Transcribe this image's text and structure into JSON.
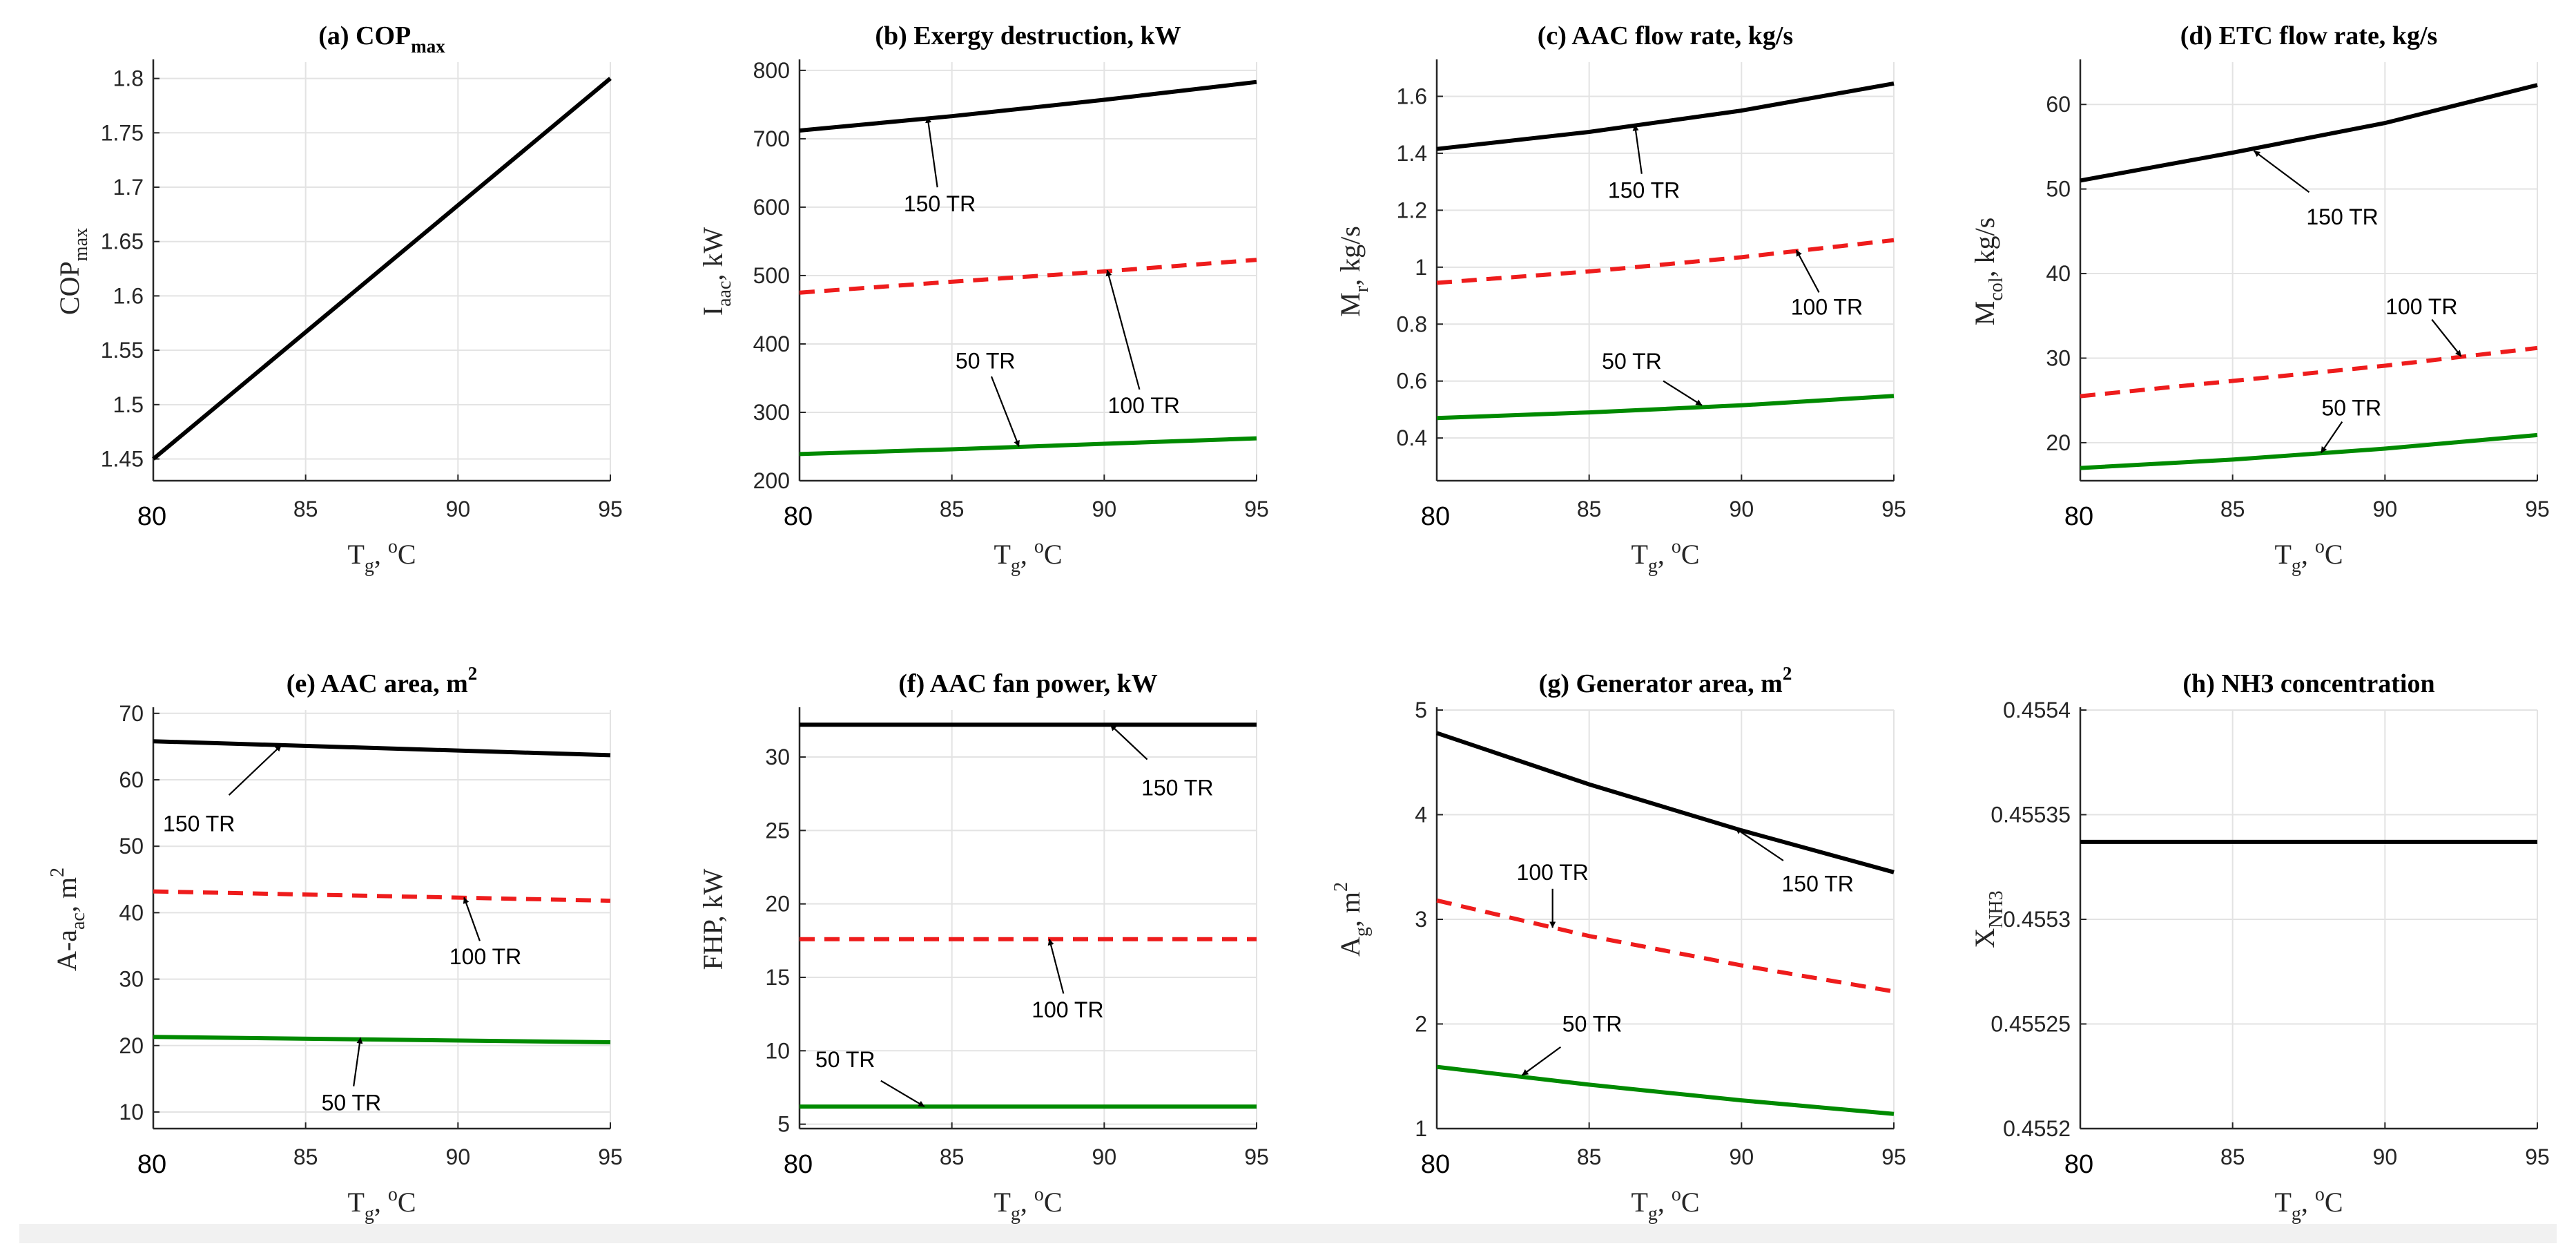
{
  "x_axis_label": {
    "main": "T",
    "sub": "g",
    "sep": ", ",
    "sup_main": "o",
    "tail": "C"
  },
  "chart_data": [
    {
      "type": "line",
      "title_main": "(a) COP",
      "title_sub": "max",
      "title_sup": "",
      "ylabel": {
        "main": "COP",
        "sub": "max",
        "sup": "",
        "tail": ""
      },
      "xlim": [
        80,
        95
      ],
      "ylim": [
        1.43,
        1.815
      ],
      "xticks": [
        80,
        85,
        90,
        95
      ],
      "xtick_labels": [
        "80",
        "85",
        "90",
        "95"
      ],
      "yticks": [
        1.45,
        1.5,
        1.55,
        1.6,
        1.65,
        1.7,
        1.75,
        1.8
      ],
      "ytick_labels": [
        "1.45",
        "1.5",
        "1.55",
        "1.6",
        "1.65",
        "1.7",
        "1.75",
        "1.8"
      ],
      "series": [
        {
          "name": "COPmax",
          "color": "#000000",
          "dash": false,
          "x": [
            80,
            95
          ],
          "y": [
            1.45,
            1.8
          ]
        }
      ],
      "annotations": []
    },
    {
      "type": "line",
      "title_main": "(b) Exergy destruction, kW",
      "title_sub": "",
      "title_sup": "",
      "ylabel": {
        "main": "I",
        "sub": "aac",
        "sup": "",
        "tail": ", kW"
      },
      "xlim": [
        80,
        95
      ],
      "ylim": [
        200,
        812
      ],
      "xticks": [
        80,
        85,
        90,
        95
      ],
      "xtick_labels": [
        "80",
        "85",
        "90",
        "95"
      ],
      "yticks": [
        200,
        300,
        400,
        500,
        600,
        700,
        800
      ],
      "ytick_labels": [
        "200",
        "300",
        "400",
        "500",
        "600",
        "700",
        "800"
      ],
      "series": [
        {
          "name": "150 TR",
          "color": "#000000",
          "dash": false,
          "x": [
            80,
            85,
            90,
            95
          ],
          "y": [
            712,
            733,
            757,
            783
          ]
        },
        {
          "name": "100 TR",
          "color": "#ee1c1c",
          "dash": true,
          "x": [
            80,
            85,
            90,
            95
          ],
          "y": [
            475,
            491,
            506,
            523
          ]
        },
        {
          "name": "50 TR",
          "color": "#008a00",
          "dash": false,
          "x": [
            80,
            85,
            90,
            95
          ],
          "y": [
            239,
            246,
            254,
            262
          ]
        }
      ],
      "annotations": [
        {
          "text": "150 TR",
          "label_x": 84.6,
          "label_y": 605,
          "point_x": 84.2,
          "point_y": 732
        },
        {
          "text": "100 TR",
          "label_x": 91.3,
          "label_y": 310,
          "point_x": 90.1,
          "point_y": 508
        },
        {
          "text": "50 TR",
          "label_x": 86.1,
          "label_y": 375,
          "point_x": 87.2,
          "point_y": 250
        }
      ]
    },
    {
      "type": "line",
      "title_main": "(c) AAC flow rate, kg/s",
      "title_sub": "",
      "title_sup": "",
      "ylabel": {
        "main": "M",
        "sub": "r",
        "sup": "",
        "tail": ", kg/s"
      },
      "xlim": [
        80,
        95
      ],
      "ylim": [
        0.25,
        1.72
      ],
      "xticks": [
        80,
        85,
        90,
        95
      ],
      "xtick_labels": [
        "80",
        "85",
        "90",
        "95"
      ],
      "yticks": [
        0.4,
        0.6,
        0.8,
        1,
        1.2,
        1.4,
        1.6
      ],
      "ytick_labels": [
        "0.4",
        "0.6",
        "0.8",
        "1",
        "1.2",
        "1.4",
        "1.6"
      ],
      "series": [
        {
          "name": "150 TR",
          "color": "#000000",
          "dash": false,
          "x": [
            80,
            85,
            90,
            95
          ],
          "y": [
            1.415,
            1.475,
            1.55,
            1.645
          ]
        },
        {
          "name": "100 TR",
          "color": "#ee1c1c",
          "dash": true,
          "x": [
            80,
            85,
            90,
            95
          ],
          "y": [
            0.945,
            0.985,
            1.035,
            1.095
          ]
        },
        {
          "name": "50 TR",
          "color": "#008a00",
          "dash": false,
          "x": [
            80,
            85,
            90,
            95
          ],
          "y": [
            0.47,
            0.49,
            0.515,
            0.548
          ]
        }
      ],
      "annotations": [
        {
          "text": "150 TR",
          "label_x": 86.8,
          "label_y": 1.27,
          "point_x": 86.5,
          "point_y": 1.5
        },
        {
          "text": "100 TR",
          "label_x": 92.8,
          "label_y": 0.86,
          "point_x": 91.8,
          "point_y": 1.06
        },
        {
          "text": "50 TR",
          "label_x": 86.4,
          "label_y": 0.67,
          "point_x": 88.7,
          "point_y": 0.515
        }
      ]
    },
    {
      "type": "line",
      "title_main": "(d) ETC flow rate, kg/s",
      "title_sub": "",
      "title_sup": "",
      "ylabel": {
        "main": "M",
        "sub": "col",
        "sup": "",
        "tail": ", kg/s"
      },
      "xlim": [
        80,
        95
      ],
      "ylim": [
        15.5,
        65
      ],
      "xticks": [
        80,
        85,
        90,
        95
      ],
      "xtick_labels": [
        "80",
        "85",
        "90",
        "95"
      ],
      "yticks": [
        20,
        30,
        40,
        50,
        60
      ],
      "ytick_labels": [
        "20",
        "30",
        "40",
        "50",
        "60"
      ],
      "series": [
        {
          "name": "150 TR",
          "color": "#000000",
          "dash": false,
          "x": [
            80,
            85,
            90,
            95
          ],
          "y": [
            51,
            54.3,
            57.8,
            62.3
          ]
        },
        {
          "name": "100 TR",
          "color": "#ee1c1c",
          "dash": true,
          "x": [
            80,
            85,
            90,
            95
          ],
          "y": [
            25.5,
            27.3,
            29.1,
            31.2
          ]
        },
        {
          "name": "50 TR",
          "color": "#008a00",
          "dash": false,
          "x": [
            80,
            85,
            90,
            95
          ],
          "y": [
            17,
            18,
            19.3,
            20.9
          ]
        }
      ],
      "annotations": [
        {
          "text": "150 TR",
          "label_x": 88.6,
          "label_y": 46.7,
          "point_x": 85.7,
          "point_y": 54.5
        },
        {
          "text": "100 TR",
          "label_x": 91.2,
          "label_y": 36.1,
          "point_x": 92.5,
          "point_y": 30.2
        },
        {
          "text": "50 TR",
          "label_x": 88.9,
          "label_y": 24.1,
          "point_x": 87.9,
          "point_y": 18.8
        }
      ]
    },
    {
      "type": "line",
      "title_main": "(e) AAC area, m",
      "title_sub": "",
      "title_sup": "2",
      "ylabel": {
        "main": "A-a",
        "sub": "ac",
        "sup": "2",
        "tail": ", m"
      },
      "xlim": [
        80,
        95
      ],
      "ylim": [
        7.5,
        70.5
      ],
      "xticks": [
        80,
        85,
        90,
        95
      ],
      "xtick_labels": [
        "80",
        "85",
        "90",
        "95"
      ],
      "yticks": [
        10,
        20,
        30,
        40,
        50,
        60,
        70
      ],
      "ytick_labels": [
        "10",
        "20",
        "30",
        "40",
        "50",
        "60",
        "70"
      ],
      "series": [
        {
          "name": "150 TR",
          "color": "#000000",
          "dash": false,
          "x": [
            80,
            95
          ],
          "y": [
            65.8,
            63.7
          ]
        },
        {
          "name": "100 TR",
          "color": "#ee1c1c",
          "dash": true,
          "x": [
            80,
            95
          ],
          "y": [
            43.2,
            41.8
          ]
        },
        {
          "name": "50 TR",
          "color": "#008a00",
          "dash": false,
          "x": [
            80,
            95
          ],
          "y": [
            21.3,
            20.5
          ]
        }
      ],
      "annotations": [
        {
          "text": "150 TR",
          "label_x": 81.5,
          "label_y": 53.4,
          "point_x": 84.2,
          "point_y": 65.2
        },
        {
          "text": "100 TR",
          "label_x": 90.9,
          "label_y": 33.4,
          "point_x": 90.2,
          "point_y": 42.3
        },
        {
          "text": "50 TR",
          "label_x": 86.5,
          "label_y": 11.4,
          "point_x": 86.8,
          "point_y": 21.2
        }
      ]
    },
    {
      "type": "line",
      "title_main": "(f) AAC fan power, kW",
      "title_sub": "",
      "title_sup": "",
      "ylabel": {
        "main": "FHP, kW",
        "sub": "",
        "sup": "",
        "tail": ""
      },
      "xlim": [
        80,
        95
      ],
      "ylim": [
        4.7,
        33.2
      ],
      "xticks": [
        80,
        85,
        90,
        95
      ],
      "xtick_labels": [
        "80",
        "85",
        "90",
        "95"
      ],
      "yticks": [
        5,
        10,
        15,
        20,
        25,
        30
      ],
      "ytick_labels": [
        "5",
        "10",
        "15",
        "20",
        "25",
        "30"
      ],
      "series": [
        {
          "name": "150 TR",
          "color": "#000000",
          "dash": false,
          "x": [
            80,
            95
          ],
          "y": [
            32.2,
            32.2
          ]
        },
        {
          "name": "100 TR",
          "color": "#ee1c1c",
          "dash": true,
          "x": [
            80,
            95
          ],
          "y": [
            17.6,
            17.6
          ]
        },
        {
          "name": "50 TR",
          "color": "#008a00",
          "dash": false,
          "x": [
            80,
            95
          ],
          "y": [
            6.2,
            6.2
          ]
        }
      ],
      "annotations": [
        {
          "text": "150 TR",
          "label_x": 92.4,
          "label_y": 27.9,
          "point_x": 90.2,
          "point_y": 32.2
        },
        {
          "text": "100 TR",
          "label_x": 88.8,
          "label_y": 12.8,
          "point_x": 88.2,
          "point_y": 17.6
        },
        {
          "text": "50 TR",
          "label_x": 81.5,
          "label_y": 9.4,
          "point_x": 84.1,
          "point_y": 6.2
        }
      ]
    },
    {
      "type": "line",
      "title_main": "(g) Generator area, m",
      "title_sub": "",
      "title_sup": "2",
      "ylabel": {
        "main": "A",
        "sub": "g",
        "sup": "2",
        "tail": ", m"
      },
      "xlim": [
        80,
        95
      ],
      "ylim": [
        1,
        5
      ],
      "xticks": [
        80,
        85,
        90,
        95
      ],
      "xtick_labels": [
        "80",
        "85",
        "90",
        "95"
      ],
      "yticks": [
        1,
        2,
        3,
        4,
        5
      ],
      "ytick_labels": [
        "1",
        "2",
        "3",
        "4",
        "5"
      ],
      "series": [
        {
          "name": "150 TR",
          "color": "#000000",
          "dash": false,
          "x": [
            80,
            85,
            90,
            95
          ],
          "y": [
            4.78,
            4.29,
            3.85,
            3.45
          ]
        },
        {
          "name": "100 TR",
          "color": "#ee1c1c",
          "dash": true,
          "x": [
            80,
            85,
            90,
            95
          ],
          "y": [
            3.18,
            2.84,
            2.56,
            2.31
          ]
        },
        {
          "name": "50 TR",
          "color": "#008a00",
          "dash": false,
          "x": [
            80,
            85,
            90,
            95
          ],
          "y": [
            1.59,
            1.42,
            1.27,
            1.14
          ]
        }
      ],
      "annotations": [
        {
          "text": "150 TR",
          "label_x": 92.5,
          "label_y": 3.34,
          "point_x": 89.8,
          "point_y": 3.87
        },
        {
          "text": "100 TR",
          "label_x": 83.8,
          "label_y": 3.45,
          "point_x": 83.8,
          "point_y": 2.92
        },
        {
          "text": "50 TR",
          "label_x": 85.1,
          "label_y": 2.0,
          "point_x": 82.8,
          "point_y": 1.51
        }
      ]
    },
    {
      "type": "line",
      "title_main": "(h) NH3 concentration",
      "title_sub": "",
      "title_sup": "",
      "ylabel": {
        "main": "X",
        "sub": "NH3",
        "sup": "",
        "tail": ""
      },
      "xlim": [
        80,
        95
      ],
      "ylim": [
        0.4552,
        0.4554
      ],
      "xticks": [
        80,
        85,
        90,
        95
      ],
      "xtick_labels": [
        "80",
        "85",
        "90",
        "95"
      ],
      "yticks": [
        0.4552,
        0.45525,
        0.4553,
        0.45535,
        0.4554
      ],
      "ytick_labels": [
        "0.4552",
        "0.45525",
        "0.4553",
        "0.45535",
        "0.4554"
      ],
      "series": [
        {
          "name": "NH3",
          "color": "#000000",
          "dash": false,
          "x": [
            80,
            95
          ],
          "y": [
            0.455337,
            0.455337
          ]
        }
      ],
      "annotations": []
    }
  ]
}
